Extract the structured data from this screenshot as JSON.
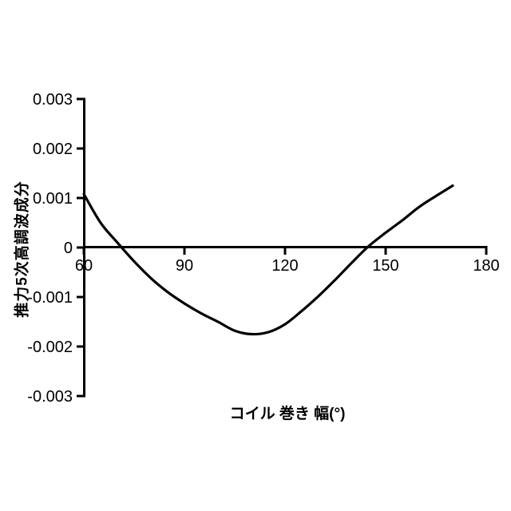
{
  "page": {
    "background": "#ffffff"
  },
  "chart_data": {
    "type": "line",
    "title": "",
    "xlabel": "コイル 巻き 幅(°)",
    "ylabel": "推力5次高調波成分",
    "xlim": [
      60,
      180
    ],
    "ylim": [
      -0.003,
      0.003
    ],
    "x_ticks": [
      60,
      90,
      120,
      150,
      180
    ],
    "x_tick_labels": [
      "60",
      "90",
      "120",
      "150",
      "180"
    ],
    "y_ticks": [
      0.003,
      0.002,
      0.001,
      0,
      -0.001,
      -0.002,
      -0.003
    ],
    "y_tick_labels": [
      "0.003",
      "0.002",
      "0.001",
      "0",
      "-0.001",
      "-0.002",
      "-0.003"
    ],
    "grid": false,
    "legend": "none",
    "axis_color": "#000000",
    "line_color": "#000000",
    "series": [
      {
        "name": "推力5次高調波成分",
        "x": [
          60,
          65,
          70,
          75,
          80,
          85,
          90,
          95,
          100,
          105,
          110,
          115,
          120,
          125,
          130,
          135,
          140,
          145,
          150,
          155,
          160,
          165,
          170
        ],
        "y": [
          0.00108,
          0.0005,
          0.0001,
          -0.00028,
          -0.00062,
          -0.0009,
          -0.00113,
          -0.00133,
          -0.0015,
          -0.00168,
          -0.00175,
          -0.00171,
          -0.00155,
          -0.00128,
          -0.00098,
          -0.00065,
          -0.0003,
          3e-05,
          0.0003,
          0.00055,
          0.00082,
          0.00104,
          0.00125
        ]
      }
    ]
  }
}
